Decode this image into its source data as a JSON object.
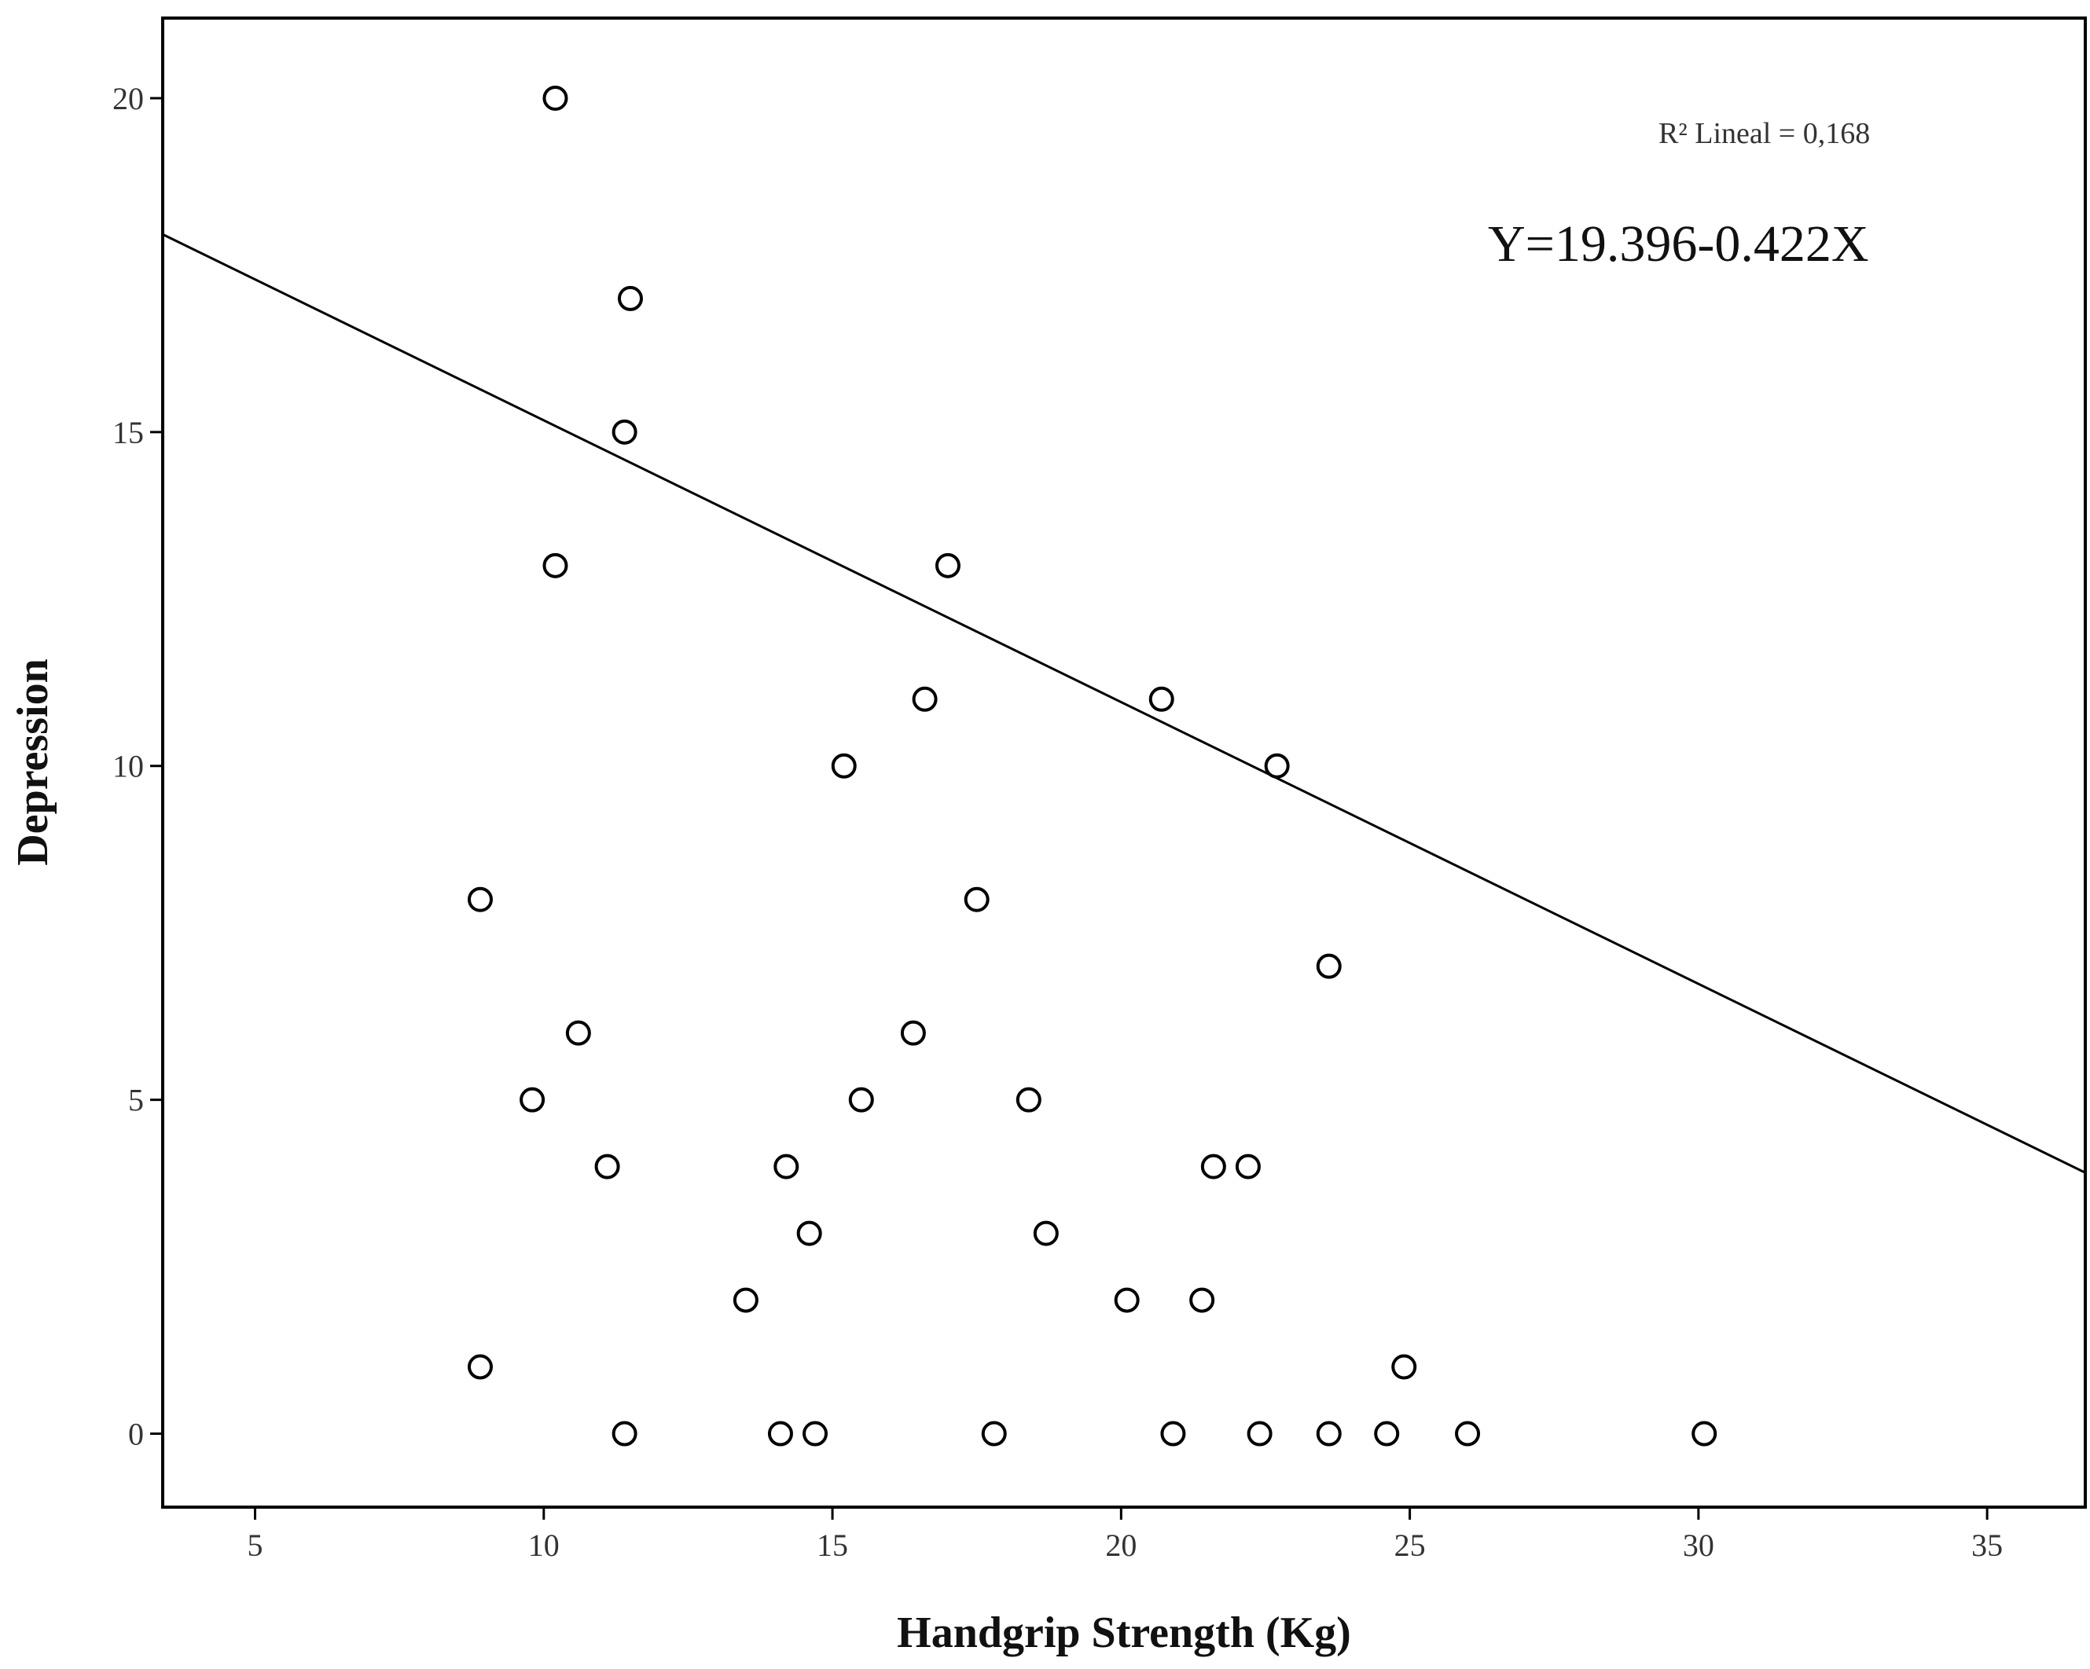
{
  "chart_data": {
    "type": "scatter",
    "title": "",
    "xlabel": "Handgrip Strength (Kg)",
    "ylabel": "Depression",
    "xlim": [
      3.4,
      36.7
    ],
    "ylim": [
      -1.1,
      21.2
    ],
    "x_ticks": [
      5,
      10,
      15,
      20,
      25,
      30,
      35
    ],
    "y_ticks": [
      0,
      5,
      10,
      15,
      20
    ],
    "grid": false,
    "annotations": {
      "r2_label": "R² Lineal = 0,168",
      "equation": "Y=19.396-0.422X"
    },
    "fit_line": {
      "intercept": 19.396,
      "slope": -0.422
    },
    "points": [
      {
        "x": 10.2,
        "y": 20
      },
      {
        "x": 11.5,
        "y": 17
      },
      {
        "x": 11.4,
        "y": 15
      },
      {
        "x": 10.2,
        "y": 13
      },
      {
        "x": 17.0,
        "y": 13
      },
      {
        "x": 16.6,
        "y": 11
      },
      {
        "x": 20.7,
        "y": 11
      },
      {
        "x": 15.2,
        "y": 10
      },
      {
        "x": 22.7,
        "y": 10
      },
      {
        "x": 8.9,
        "y": 8
      },
      {
        "x": 17.5,
        "y": 8
      },
      {
        "x": 23.6,
        "y": 7
      },
      {
        "x": 10.6,
        "y": 6
      },
      {
        "x": 16.4,
        "y": 6
      },
      {
        "x": 9.8,
        "y": 5
      },
      {
        "x": 15.5,
        "y": 5
      },
      {
        "x": 18.4,
        "y": 5
      },
      {
        "x": 11.1,
        "y": 4
      },
      {
        "x": 14.2,
        "y": 4
      },
      {
        "x": 21.6,
        "y": 4
      },
      {
        "x": 22.2,
        "y": 4
      },
      {
        "x": 14.6,
        "y": 3
      },
      {
        "x": 18.7,
        "y": 3
      },
      {
        "x": 13.5,
        "y": 2
      },
      {
        "x": 20.1,
        "y": 2
      },
      {
        "x": 21.4,
        "y": 2
      },
      {
        "x": 8.9,
        "y": 1
      },
      {
        "x": 24.9,
        "y": 1
      },
      {
        "x": 11.4,
        "y": 0
      },
      {
        "x": 14.1,
        "y": 0
      },
      {
        "x": 14.7,
        "y": 0
      },
      {
        "x": 17.8,
        "y": 0
      },
      {
        "x": 20.9,
        "y": 0
      },
      {
        "x": 22.4,
        "y": 0
      },
      {
        "x": 23.6,
        "y": 0
      },
      {
        "x": 24.6,
        "y": 0
      },
      {
        "x": 26.0,
        "y": 0
      },
      {
        "x": 30.1,
        "y": 0
      }
    ]
  }
}
